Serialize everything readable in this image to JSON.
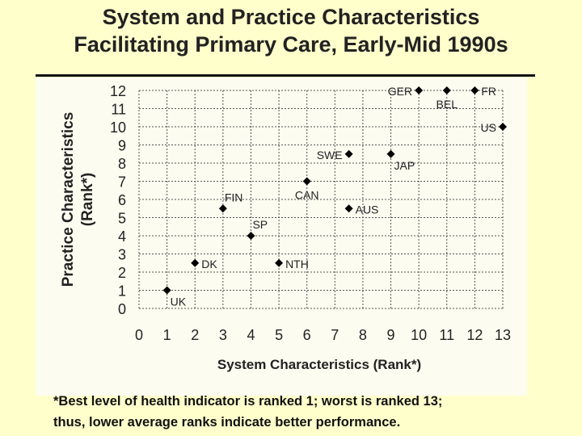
{
  "slide": {
    "title_line1": "System and Practice Characteristics",
    "title_line2": "Facilitating Primary Care, Early-Mid 1990s",
    "footnote_line1": "*Best level of health indicator is ranked 1; worst is ranked 13;",
    "footnote_line2": "thus, lower average ranks indicate better performance."
  },
  "chart_data": {
    "type": "scatter",
    "title": "System and Practice Characteristics Facilitating Primary Care, Early-Mid 1990s",
    "xlabel": "System Characteristics (Rank*)",
    "ylabel_line1": "Practice Characteristics",
    "ylabel_line2": "(Rank*)",
    "xlim": [
      0,
      13
    ],
    "ylim": [
      0,
      12
    ],
    "xticks": [
      0,
      1,
      2,
      3,
      4,
      5,
      6,
      7,
      8,
      9,
      10,
      11,
      12,
      13
    ],
    "yticks": [
      0,
      1,
      2,
      3,
      4,
      5,
      6,
      7,
      8,
      9,
      10,
      11,
      12
    ],
    "grid": true,
    "marker": "diamond",
    "marker_color": "#000000",
    "points": [
      {
        "label": "UK",
        "x": 1,
        "y": 1,
        "label_pos": "below-right"
      },
      {
        "label": "DK",
        "x": 2,
        "y": 2.5,
        "label_pos": "right"
      },
      {
        "label": "FIN",
        "x": 3,
        "y": 5.5,
        "label_pos": "above-right"
      },
      {
        "label": "SP",
        "x": 4,
        "y": 4,
        "label_pos": "above-right"
      },
      {
        "label": "NTH",
        "x": 5,
        "y": 2.5,
        "label_pos": "right"
      },
      {
        "label": "CAN",
        "x": 6,
        "y": 7,
        "label_pos": "below"
      },
      {
        "label": "SWE",
        "x": 7.5,
        "y": 8.5,
        "label_pos": "left"
      },
      {
        "label": "AUS",
        "x": 7.5,
        "y": 5.5,
        "label_pos": "right"
      },
      {
        "label": "JAP",
        "x": 9,
        "y": 8.5,
        "label_pos": "below-right"
      },
      {
        "label": "GER",
        "x": 10,
        "y": 12,
        "label_pos": "left"
      },
      {
        "label": "BEL",
        "x": 11,
        "y": 12,
        "label_pos": "below"
      },
      {
        "label": "FR",
        "x": 12,
        "y": 12,
        "label_pos": "right"
      },
      {
        "label": "US",
        "x": 13,
        "y": 10,
        "label_pos": "left"
      }
    ]
  }
}
